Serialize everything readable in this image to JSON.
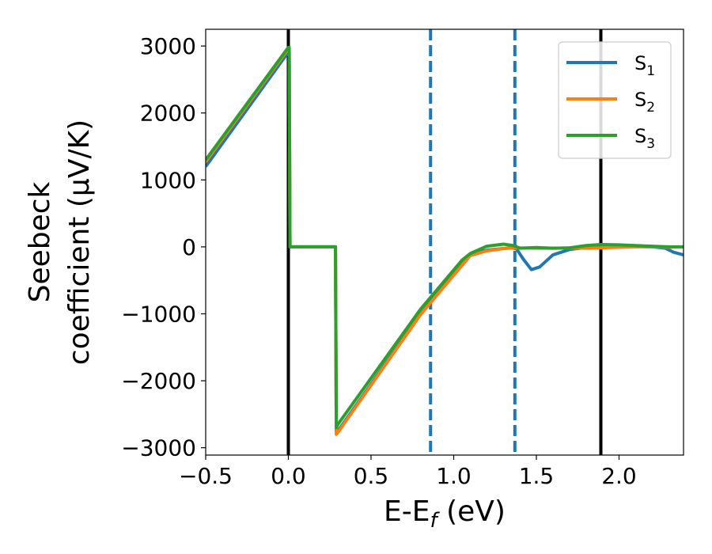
{
  "chart_data": {
    "type": "line",
    "xlabel_main": "E-E",
    "xlabel_sub": "f",
    "xlabel_unit": " (eV)",
    "ylabel_line1": "Seebeck",
    "ylabel_line2": "coefficient  (μV/K)",
    "xlim": [
      -0.5,
      2.39
    ],
    "ylim": [
      -3110,
      3250
    ],
    "x_ticks": [
      -0.5,
      0.0,
      0.5,
      1.0,
      1.5,
      2.0
    ],
    "x_tick_labels": [
      "−0.5",
      "0.0",
      "0.5",
      "1.0",
      "1.5",
      "2.0"
    ],
    "y_ticks": [
      3000,
      2000,
      1000,
      0,
      -1000,
      -2000,
      -3000
    ],
    "y_tick_labels": [
      "3000",
      "2000",
      "1000",
      "0",
      "−1000",
      "−2000",
      "−3000"
    ],
    "grid": false,
    "legend_position": "top-right",
    "vertical_lines": [
      {
        "x": 0.0,
        "style": "solid",
        "color": "#000000"
      },
      {
        "x": 1.89,
        "style": "solid",
        "color": "#000000"
      },
      {
        "x": 0.86,
        "style": "dashed",
        "color": "#1f77b4"
      },
      {
        "x": 1.37,
        "style": "dashed",
        "color": "#1f77b4"
      }
    ],
    "series": [
      {
        "name": "S",
        "subscript": "1",
        "color": "#1f77b4",
        "x": [
          -0.5,
          0.0,
          0.005,
          0.01,
          0.285,
          0.29,
          0.3,
          0.8,
          1.1,
          1.2,
          1.3,
          1.35,
          1.38,
          1.42,
          1.47,
          1.52,
          1.6,
          1.7,
          1.8,
          1.89,
          2.0,
          2.1,
          2.2,
          2.28,
          2.33,
          2.39
        ],
        "y": [
          1200,
          2910,
          2910,
          0,
          0,
          -2780,
          -2750,
          -1000,
          -110,
          -50,
          -25,
          -15,
          -30,
          -180,
          -340,
          -300,
          -120,
          -40,
          -10,
          0,
          5,
          5,
          0,
          -20,
          -80,
          -120
        ]
      },
      {
        "name": "S",
        "subscript": "2",
        "color": "#ff7f0e",
        "x": [
          -0.5,
          0.0,
          0.005,
          0.01,
          0.285,
          0.29,
          0.3,
          0.8,
          1.1,
          1.2,
          1.3,
          1.37,
          1.5,
          1.6,
          1.7,
          1.8,
          1.89,
          2.0,
          2.1,
          2.2,
          2.3,
          2.39
        ],
        "y": [
          1270,
          2960,
          2960,
          0,
          0,
          -2800,
          -2770,
          -1010,
          -130,
          -60,
          -25,
          -15,
          -20,
          -20,
          -15,
          -20,
          -15,
          -5,
          0,
          0,
          -5,
          0
        ]
      },
      {
        "name": "S",
        "subscript": "3",
        "color": "#2ca02c",
        "x": [
          -0.5,
          0.0,
          0.005,
          0.01,
          0.285,
          0.29,
          0.3,
          0.8,
          1.05,
          1.1,
          1.2,
          1.3,
          1.36,
          1.4,
          1.5,
          1.6,
          1.7,
          1.8,
          1.89,
          2.0,
          2.1,
          2.2,
          2.3,
          2.39
        ],
        "y": [
          1300,
          2980,
          2980,
          0,
          0,
          -2700,
          -2650,
          -930,
          -200,
          -100,
          10,
          40,
          20,
          -20,
          -10,
          -20,
          -15,
          20,
          35,
          30,
          20,
          10,
          0,
          0
        ]
      }
    ]
  }
}
